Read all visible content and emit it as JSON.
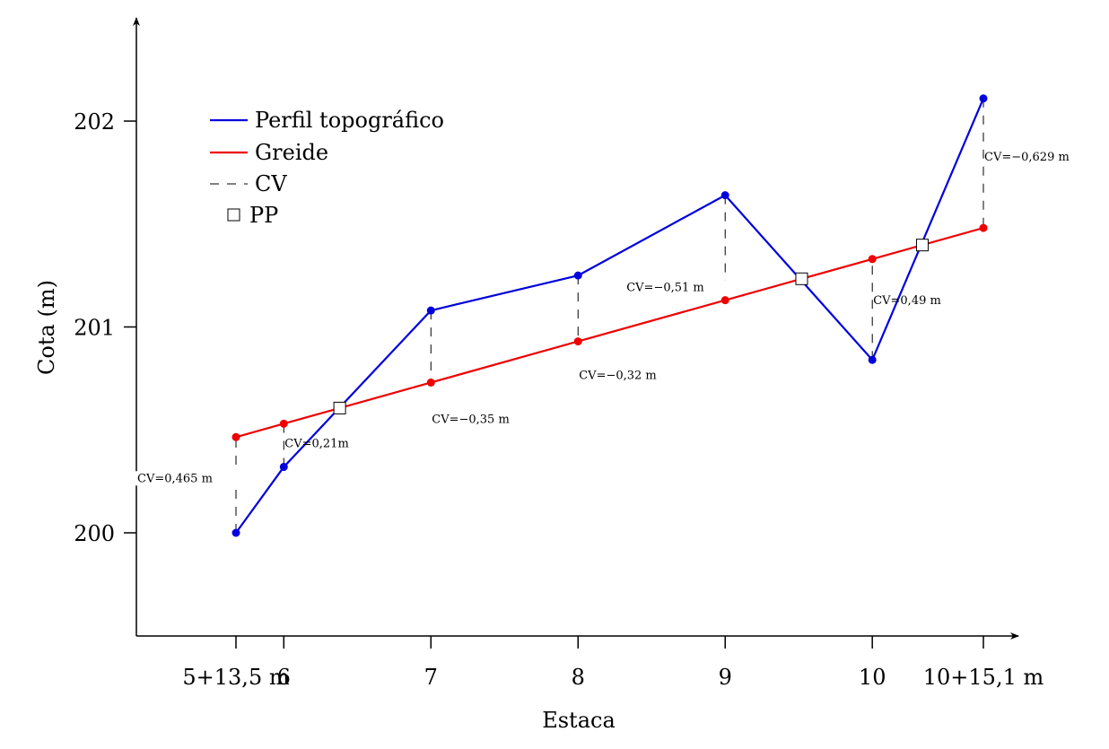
{
  "chart_data": {
    "type": "line",
    "xlabel": "Estaca",
    "ylabel": "Cota (m)",
    "x_domain": [
      5.675,
      10.755
    ],
    "y_domain": [
      199.5,
      202.5
    ],
    "x_ticks": [
      {
        "x": 5.675,
        "label": "5+13,5 m"
      },
      {
        "x": 6,
        "label": "6"
      },
      {
        "x": 7,
        "label": "7"
      },
      {
        "x": 8,
        "label": "8"
      },
      {
        "x": 9,
        "label": "9"
      },
      {
        "x": 10,
        "label": "10"
      },
      {
        "x": 10.755,
        "label": "10+15,1 m"
      }
    ],
    "y_ticks": [
      {
        "y": 200,
        "label": "200"
      },
      {
        "y": 201,
        "label": "201"
      },
      {
        "y": 202,
        "label": "202"
      }
    ],
    "series": [
      {
        "name": "Perfil topográfico",
        "color": "#0000dd",
        "x": [
          5.675,
          6,
          7,
          8,
          9,
          10,
          10.755
        ],
        "y": [
          200.0,
          200.32,
          201.08,
          201.25,
          201.64,
          200.84,
          202.11
        ]
      },
      {
        "name": "Greide",
        "color": "#ee0000",
        "x": [
          5.675,
          6,
          7,
          8,
          9,
          10,
          10.755
        ],
        "y": [
          200.465,
          200.53,
          200.73,
          200.93,
          201.13,
          201.33,
          201.481
        ]
      }
    ],
    "cv_labels": [
      {
        "x": 5.675,
        "text": "CV=0,465 m"
      },
      {
        "x": 6,
        "text": "CV=0,21m"
      },
      {
        "x": 7,
        "text": "CV=−0,35 m"
      },
      {
        "x": 8,
        "text": "CV=−0,32 m"
      },
      {
        "x": 9,
        "text": "CV=−0,51 m"
      },
      {
        "x": 10,
        "text": "CV=0,49 m"
      },
      {
        "x": 10.755,
        "text": "CV=−0,629 m"
      }
    ],
    "pp_points": [
      {
        "x": 6.38,
        "y": 200.606
      },
      {
        "x": 9.52,
        "y": 201.234
      },
      {
        "x": 10.34,
        "y": 201.398
      }
    ],
    "legend": {
      "position": "top-left",
      "entries": [
        {
          "label": "Perfil topográfico",
          "style": "line",
          "color": "#0000dd"
        },
        {
          "label": "Greide",
          "style": "line",
          "color": "#ee0000"
        },
        {
          "label": "CV",
          "style": "dashed",
          "color": "#000000"
        },
        {
          "label": "PP",
          "style": "square",
          "color": "#000000"
        }
      ]
    }
  }
}
